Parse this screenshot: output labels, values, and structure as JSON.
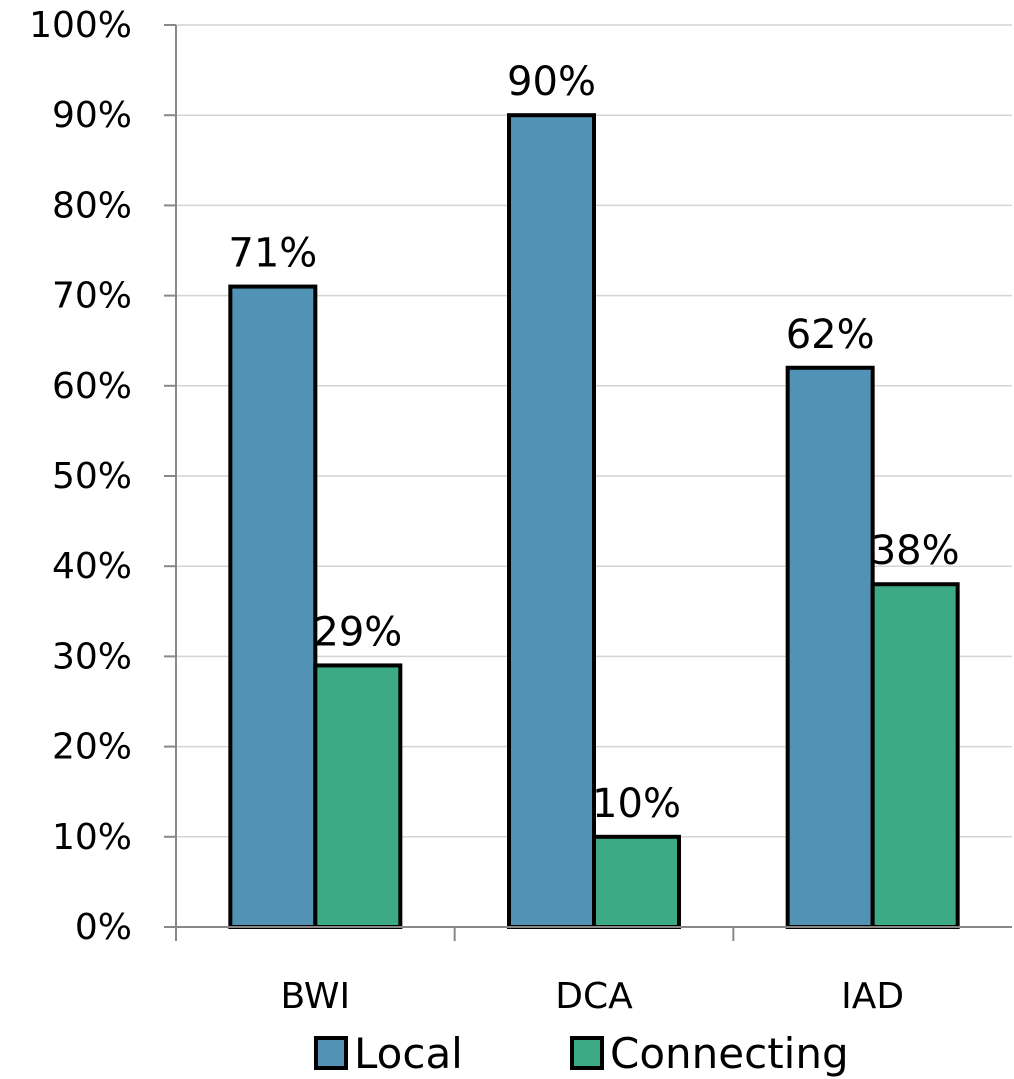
{
  "chart_data": {
    "type": "bar",
    "categories": [
      "BWI",
      "DCA",
      "IAD"
    ],
    "series": [
      {
        "name": "Local",
        "values": [
          71,
          90,
          62
        ],
        "color": "#5192b5"
      },
      {
        "name": "Connecting",
        "values": [
          29,
          10,
          38
        ],
        "color": "#3caa84"
      }
    ],
    "data_labels": [
      [
        "71%",
        "90%",
        "62%"
      ],
      [
        "29%",
        "10%",
        "38%"
      ]
    ],
    "y_ticks": [
      "0%",
      "10%",
      "20%",
      "30%",
      "40%",
      "50%",
      "60%",
      "70%",
      "80%",
      "90%",
      "100%"
    ],
    "ylim": [
      0,
      100
    ],
    "grid": true,
    "legend": "bottom",
    "title": "",
    "xlabel": "",
    "ylabel": ""
  }
}
